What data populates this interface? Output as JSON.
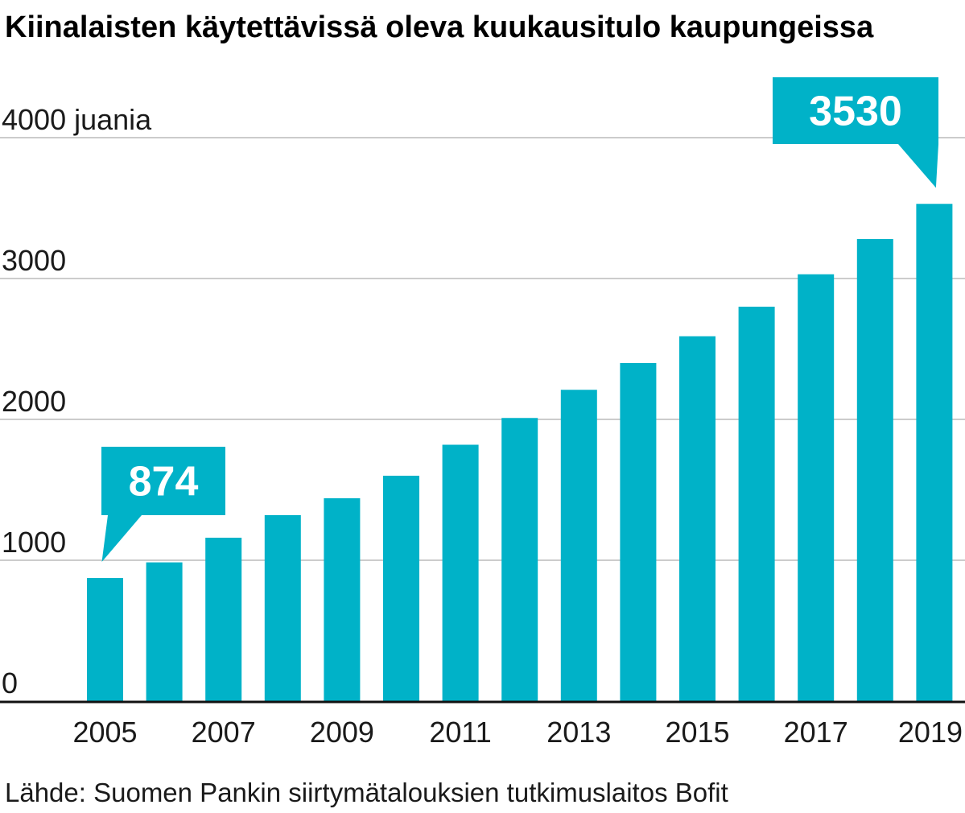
{
  "chart_data": {
    "type": "bar",
    "title": "Kiinalaisten käytettävissä oleva kuukausitulo kaupungeissa",
    "ylabel": "juania",
    "categories": [
      "2005",
      "2006",
      "2007",
      "2008",
      "2009",
      "2010",
      "2011",
      "2012",
      "2013",
      "2014",
      "2015",
      "2016",
      "2017",
      "2018",
      "2019"
    ],
    "x_tick_labels": [
      "2005",
      "2007",
      "2009",
      "2011",
      "2013",
      "2015",
      "2017",
      "2019"
    ],
    "values": [
      874,
      985,
      1160,
      1320,
      1440,
      1600,
      1820,
      2010,
      2210,
      2400,
      2590,
      2800,
      3030,
      3280,
      3530
    ],
    "y_ticks": [
      0,
      1000,
      2000,
      3000,
      4000
    ],
    "top_tick_label": "4000 juania",
    "ylim": [
      0,
      4000
    ],
    "grid": true,
    "bar_color": "#00b2c8",
    "annotations": [
      {
        "category": "2005",
        "label": "874"
      },
      {
        "category": "2019",
        "label": "3530"
      }
    ],
    "source": "Lähde: Suomen Pankin siirtymätalouksien tutkimuslaitos Bofit"
  }
}
